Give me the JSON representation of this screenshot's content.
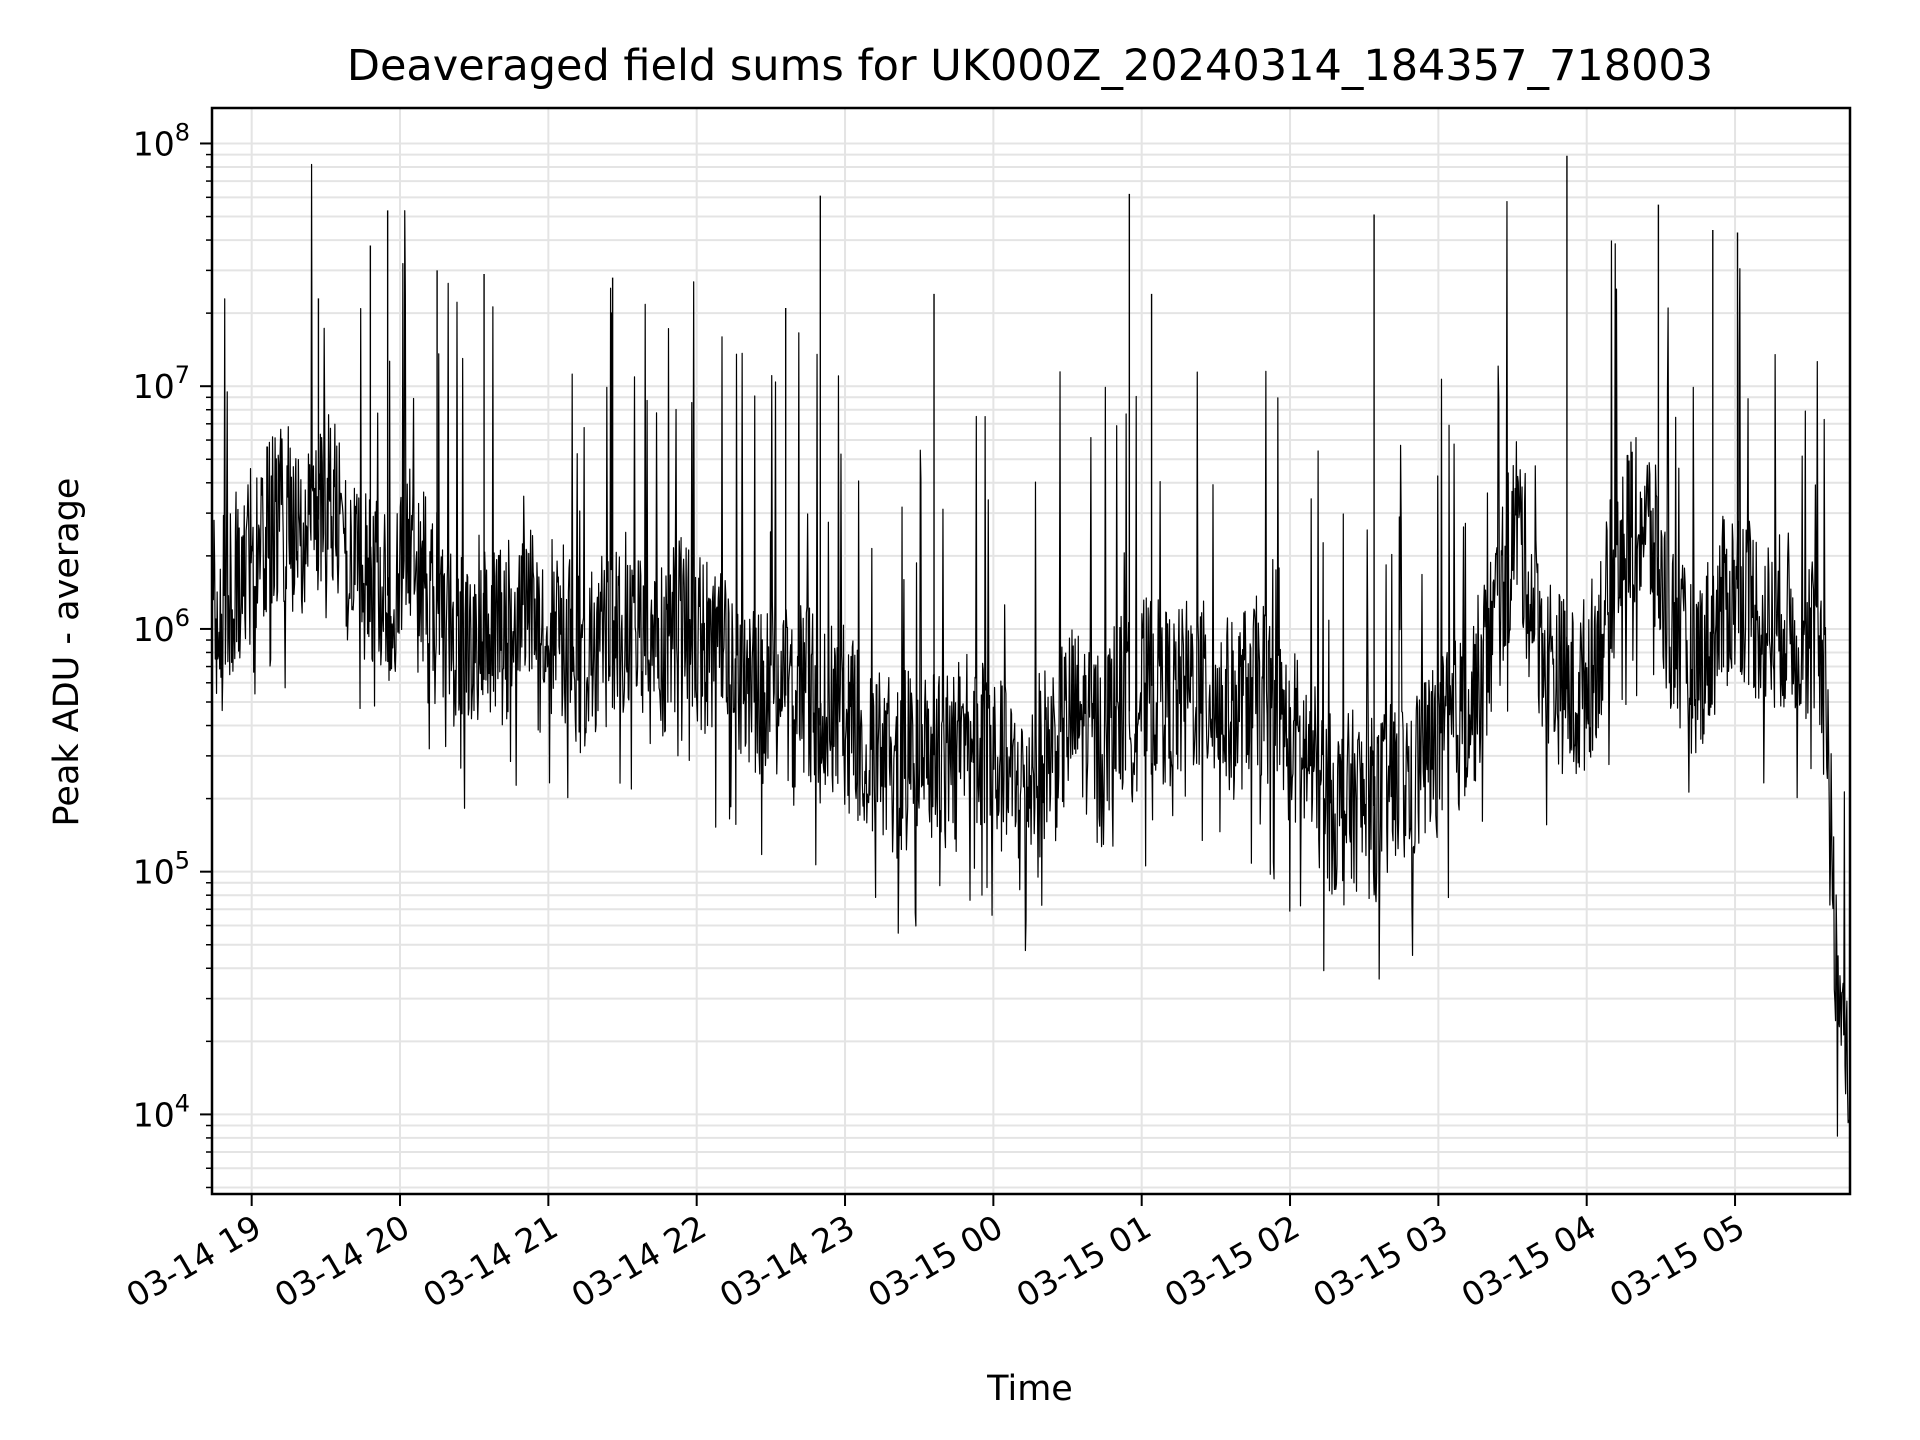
{
  "chart_data": {
    "type": "line",
    "title": "Deaveraged field sums for UK000Z_20240314_184357_718003",
    "xlabel": "Time",
    "ylabel": "Peak ADU - average",
    "yscale": "log",
    "ylim": [
      4700,
      140000000
    ],
    "xlim": [
      "2024-03-14T18:43:57",
      "2024-03-15T05:46:30"
    ],
    "grid": true,
    "line_color": "#000000",
    "grid_color": "#e4e4e4",
    "x_ticks": [
      {
        "value": "2024-03-14T19:00:00",
        "label": "03-14 19"
      },
      {
        "value": "2024-03-14T20:00:00",
        "label": "03-14 20"
      },
      {
        "value": "2024-03-14T21:00:00",
        "label": "03-14 21"
      },
      {
        "value": "2024-03-14T22:00:00",
        "label": "03-14 22"
      },
      {
        "value": "2024-03-14T23:00:00",
        "label": "03-14 23"
      },
      {
        "value": "2024-03-15T00:00:00",
        "label": "03-15 00"
      },
      {
        "value": "2024-03-15T01:00:00",
        "label": "03-15 01"
      },
      {
        "value": "2024-03-15T02:00:00",
        "label": "03-15 02"
      },
      {
        "value": "2024-03-15T03:00:00",
        "label": "03-15 03"
      },
      {
        "value": "2024-03-15T04:00:00",
        "label": "03-15 04"
      },
      {
        "value": "2024-03-15T05:00:00",
        "label": "03-15 05"
      }
    ],
    "y_ticks": [
      {
        "value": 10000,
        "base": "10",
        "exp": "4"
      },
      {
        "value": 100000,
        "base": "10",
        "exp": "5"
      },
      {
        "value": 1000000,
        "base": "10",
        "exp": "6"
      },
      {
        "value": 10000000,
        "base": "10",
        "exp": "7"
      },
      {
        "value": 100000000,
        "base": "10",
        "exp": "8"
      }
    ],
    "series": [
      {
        "x": [
          "2024-03-14T18:44:00",
          "2024-03-14T18:50:00",
          "2024-03-14T18:56:00",
          "2024-03-14T19:02:00",
          "2024-03-14T19:08:00",
          "2024-03-14T19:14:00",
          "2024-03-14T19:20:00",
          "2024-03-14T19:26:00",
          "2024-03-14T19:32:00",
          "2024-03-14T19:38:00",
          "2024-03-14T19:44:00",
          "2024-03-14T19:50:00",
          "2024-03-14T19:56:00",
          "2024-03-14T20:02:00",
          "2024-03-14T20:08:00",
          "2024-03-14T20:14:00",
          "2024-03-14T20:20:00",
          "2024-03-14T20:26:00",
          "2024-03-14T20:32:00",
          "2024-03-14T20:38:00",
          "2024-03-14T20:44:00",
          "2024-03-14T20:50:00",
          "2024-03-14T20:56:00",
          "2024-03-14T21:02:00",
          "2024-03-14T21:08:00",
          "2024-03-14T21:14:00",
          "2024-03-14T21:20:00",
          "2024-03-14T21:26:00",
          "2024-03-14T21:32:00",
          "2024-03-14T21:38:00",
          "2024-03-14T21:44:00",
          "2024-03-14T21:50:00",
          "2024-03-14T21:56:00",
          "2024-03-14T22:02:00",
          "2024-03-14T22:08:00",
          "2024-03-14T22:14:00",
          "2024-03-14T22:20:00",
          "2024-03-14T22:26:00",
          "2024-03-14T22:32:00",
          "2024-03-14T22:38:00",
          "2024-03-14T22:44:00",
          "2024-03-14T22:50:00",
          "2024-03-14T22:56:00",
          "2024-03-14T23:02:00",
          "2024-03-14T23:08:00",
          "2024-03-14T23:14:00",
          "2024-03-14T23:20:00",
          "2024-03-14T23:26:00",
          "2024-03-14T23:32:00",
          "2024-03-14T23:38:00",
          "2024-03-14T23:44:00",
          "2024-03-14T23:50:00",
          "2024-03-14T23:56:00",
          "2024-03-15T00:02:00",
          "2024-03-15T00:08:00",
          "2024-03-15T00:14:00",
          "2024-03-15T00:20:00",
          "2024-03-15T00:26:00",
          "2024-03-15T00:32:00",
          "2024-03-15T00:38:00",
          "2024-03-15T00:44:00",
          "2024-03-15T00:50:00",
          "2024-03-15T00:56:00",
          "2024-03-15T01:02:00",
          "2024-03-15T01:08:00",
          "2024-03-15T01:14:00",
          "2024-03-15T01:20:00",
          "2024-03-15T01:26:00",
          "2024-03-15T01:32:00",
          "2024-03-15T01:38:00",
          "2024-03-15T01:44:00",
          "2024-03-15T01:50:00",
          "2024-03-15T01:56:00",
          "2024-03-15T02:02:00",
          "2024-03-15T02:08:00",
          "2024-03-15T02:14:00",
          "2024-03-15T02:20:00",
          "2024-03-15T02:26:00",
          "2024-03-15T02:32:00",
          "2024-03-15T02:38:00",
          "2024-03-15T02:44:00",
          "2024-03-15T02:50:00",
          "2024-03-15T02:56:00",
          "2024-03-15T03:02:00",
          "2024-03-15T03:08:00",
          "2024-03-15T03:14:00",
          "2024-03-15T03:20:00",
          "2024-03-15T03:26:00",
          "2024-03-15T03:32:00",
          "2024-03-15T03:38:00",
          "2024-03-15T03:44:00",
          "2024-03-15T03:50:00",
          "2024-03-15T03:56:00",
          "2024-03-15T04:02:00",
          "2024-03-15T04:08:00",
          "2024-03-15T04:14:00",
          "2024-03-15T04:20:00",
          "2024-03-15T04:26:00",
          "2024-03-15T04:32:00",
          "2024-03-15T04:38:00",
          "2024-03-15T04:44:00",
          "2024-03-15T04:50:00",
          "2024-03-15T04:56:00",
          "2024-03-15T05:02:00",
          "2024-03-15T05:08:00",
          "2024-03-15T05:14:00",
          "2024-03-15T05:20:00",
          "2024-03-15T05:26:00",
          "2024-03-15T05:32:00",
          "2024-03-15T05:38:00",
          "2024-03-15T05:41:00",
          "2024-03-15T05:44:00",
          "2024-03-15T05:46:00"
        ],
        "y": [
          1200000,
          1500000,
          1700000,
          2200000,
          2800000,
          3000000,
          2500000,
          2700000,
          3500000,
          2000000,
          1500000,
          1800000,
          1300000,
          2000000,
          1800000,
          1500000,
          1000000,
          800000,
          1200000,
          900000,
          1000000,
          1500000,
          800000,
          1100000,
          900000,
          700000,
          900000,
          800000,
          1200000,
          900000,
          700000,
          1000000,
          1100000,
          900000,
          800000,
          600000,
          700000,
          500000,
          600000,
          500000,
          600000,
          400000,
          500000,
          400000,
          350000,
          300000,
          250000,
          300000,
          350000,
          280000,
          300000,
          400000,
          300000,
          280000,
          220000,
          250000,
          300000,
          350000,
          450000,
          400000,
          350000,
          500000,
          450000,
          600000,
          550000,
          500000,
          600000,
          550000,
          500000,
          450000,
          600000,
          550000,
          400000,
          350000,
          280000,
          200000,
          180000,
          200000,
          180000,
          200000,
          220000,
          250000,
          300000,
          350000,
          400000,
          500000,
          800000,
          1500000,
          3000000,
          1200000,
          800000,
          600000,
          500000,
          700000,
          1200000,
          2500000,
          3000000,
          2500000,
          1200000,
          800000,
          700000,
          900000,
          1300000,
          1500000,
          1200000,
          1000000,
          1100000,
          1000000,
          900000,
          350000,
          40000,
          25000,
          9000
        ]
      }
    ],
    "spikes": [
      {
        "x": "2024-03-14T19:27:00",
        "y": 23000000
      },
      {
        "x": "2024-03-14T19:48:00",
        "y": 38000000
      },
      {
        "x": "2024-03-14T19:55:00",
        "y": 53000000
      },
      {
        "x": "2024-03-14T20:15:00",
        "y": 30000000
      },
      {
        "x": "2024-03-14T20:34:00",
        "y": 29000000
      },
      {
        "x": "2024-03-14T21:26:00",
        "y": 28000000
      },
      {
        "x": "2024-03-14T22:36:00",
        "y": 21000000
      },
      {
        "x": "2024-03-14T22:50:00",
        "y": 61000000
      },
      {
        "x": "2024-03-14T23:36:00",
        "y": 24000000
      },
      {
        "x": "2024-03-15T00:55:00",
        "y": 62000000
      },
      {
        "x": "2024-03-15T01:04:00",
        "y": 24000000
      },
      {
        "x": "2024-03-15T02:34:00",
        "y": 51000000
      },
      {
        "x": "2024-03-15T03:52:00",
        "y": 89000000
      },
      {
        "x": "2024-03-15T04:29:00",
        "y": 56000000
      },
      {
        "x": "2024-03-15T04:51:00",
        "y": 44000000
      },
      {
        "x": "2024-03-15T05:01:00",
        "y": 43000000
      }
    ]
  }
}
